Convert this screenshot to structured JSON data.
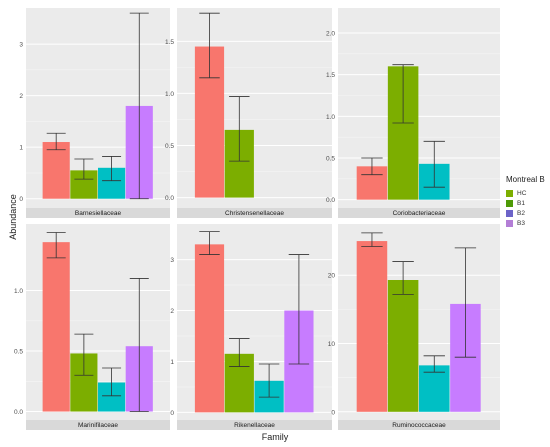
{
  "xlabel": "Family",
  "ylabel": "Abundance",
  "legend": {
    "title": "Montreal B",
    "items": [
      {
        "name": "HC",
        "color": "#7cae00"
      },
      {
        "name": "B1",
        "color": "#4e9a06"
      },
      {
        "name": "B2",
        "color": "#6c63c8"
      },
      {
        "name": "B3",
        "color": "#b37ed6"
      }
    ]
  },
  "colors": {
    "HC": "#f8766d",
    "B1": "#7cae00",
    "B2": "#00bfc4",
    "B3": "#c77cff"
  },
  "chart_data": [
    {
      "type": "bar",
      "title": "Barnesiellaceae",
      "categories": [
        "HC",
        "B1",
        "B2",
        "B3"
      ],
      "values": [
        1.1,
        0.55,
        0.6,
        1.8
      ],
      "errors": [
        [
          0.95,
          1.27
        ],
        [
          0.38,
          0.77
        ],
        [
          0.35,
          0.82
        ],
        [
          0.0,
          3.6
        ]
      ],
      "ylim": [
        -0.18,
        3.7
      ],
      "yticks": [
        0,
        1,
        2,
        3
      ]
    },
    {
      "type": "bar",
      "title": "Christensenellaceae",
      "categories": [
        "HC",
        "B1",
        "B2",
        "B3"
      ],
      "values": [
        1.45,
        0.65,
        0.0,
        0.0
      ],
      "errors": [
        [
          1.15,
          1.77
        ],
        [
          0.35,
          0.97
        ],
        null,
        null
      ],
      "ylim": [
        -0.1,
        1.82
      ],
      "yticks": [
        0.0,
        0.5,
        1.0,
        1.5
      ]
    },
    {
      "type": "bar",
      "title": "Coriobacteriaceae",
      "categories": [
        "HC",
        "B1",
        "B2",
        "B3"
      ],
      "values": [
        0.4,
        1.6,
        0.43,
        0.0
      ],
      "errors": [
        [
          0.3,
          0.5
        ],
        [
          0.92,
          1.62
        ],
        [
          0.15,
          0.7
        ],
        null
      ],
      "ylim": [
        -0.1,
        2.3
      ],
      "yticks": [
        0.0,
        0.5,
        1.0,
        1.5,
        2.0
      ]
    },
    {
      "type": "bar",
      "title": "Marinifilaceae",
      "categories": [
        "HC",
        "B1",
        "B2",
        "B3"
      ],
      "values": [
        1.4,
        0.48,
        0.24,
        0.54
      ],
      "errors": [
        [
          1.27,
          1.48
        ],
        [
          0.3,
          0.64
        ],
        [
          0.13,
          0.36
        ],
        [
          0.0,
          1.1
        ]
      ],
      "ylim": [
        -0.07,
        1.55
      ],
      "yticks": [
        0.0,
        0.5,
        1.0
      ]
    },
    {
      "type": "bar",
      "title": "Rikenellaceae",
      "categories": [
        "HC",
        "B1",
        "B2",
        "B3"
      ],
      "values": [
        3.3,
        1.15,
        0.62,
        2.0
      ],
      "errors": [
        [
          3.1,
          3.55
        ],
        [
          0.9,
          1.45
        ],
        [
          0.3,
          0.95
        ],
        [
          0.95,
          3.1
        ]
      ],
      "ylim": [
        -0.15,
        3.7
      ],
      "yticks": [
        0,
        1,
        2,
        3
      ]
    },
    {
      "type": "bar",
      "title": "Ruminococcaceae",
      "categories": [
        "HC",
        "B1",
        "B2",
        "B3"
      ],
      "values": [
        25.0,
        19.3,
        6.8,
        15.8
      ],
      "errors": [
        [
          24.2,
          26.2
        ],
        [
          17.2,
          22.0
        ],
        [
          5.8,
          8.2
        ],
        [
          8.0,
          24.0
        ]
      ],
      "ylim": [
        -1.2,
        27.5
      ],
      "yticks": [
        0,
        10,
        20
      ]
    }
  ]
}
